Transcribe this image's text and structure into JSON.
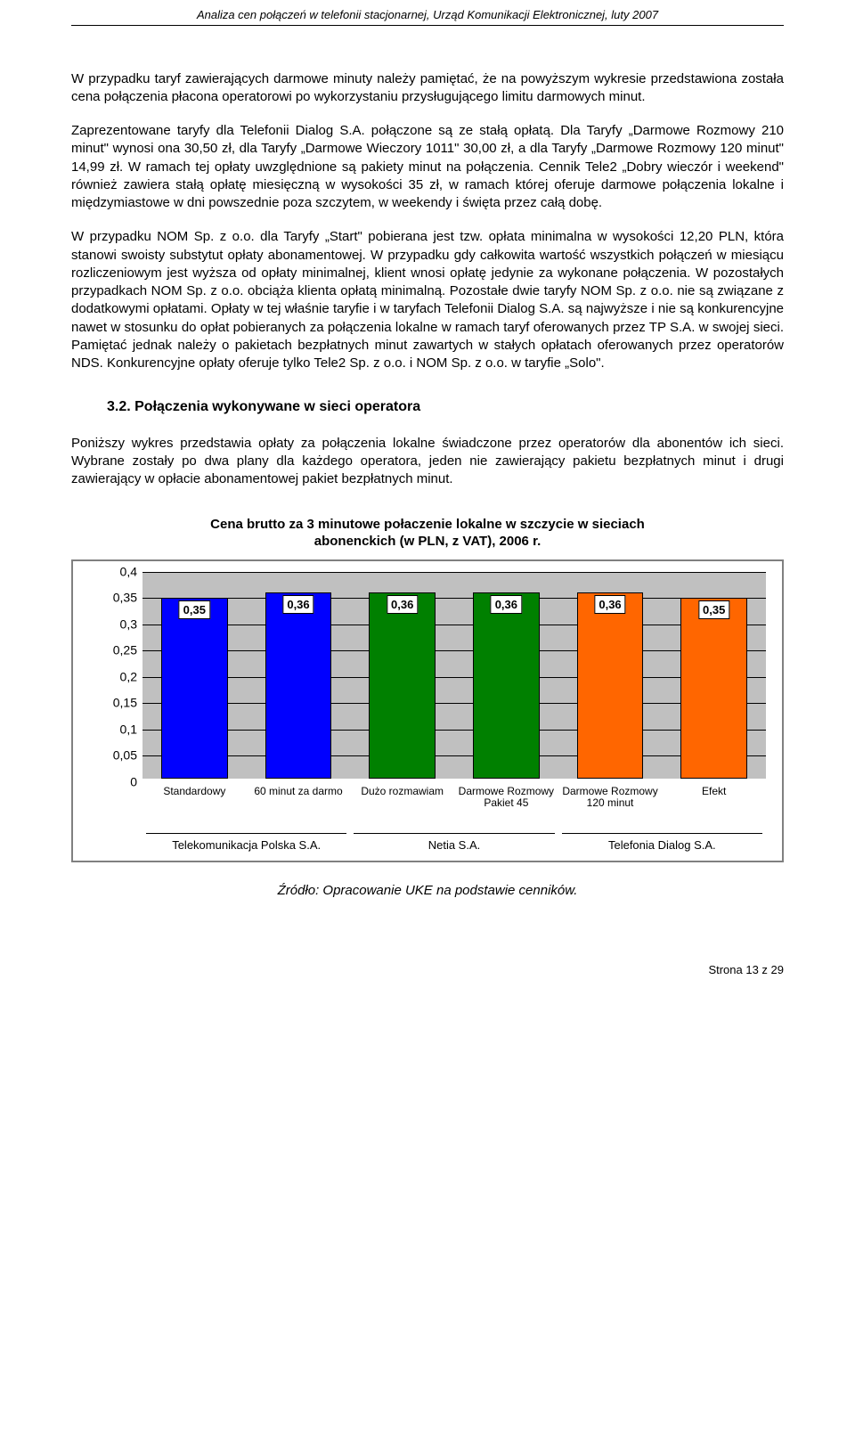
{
  "header": "Analiza cen połączeń w telefonii stacjonarnej, Urząd Komunikacji Elektronicznej, luty 2007",
  "para1": "W przypadku taryf zawierających darmowe minuty należy pamiętać, że na powyższym wykresie przedstawiona została cena połączenia płacona operatorowi po wykorzystaniu przysługującego limitu darmowych minut.",
  "para2": "Zaprezentowane taryfy dla Telefonii Dialog S.A. połączone są ze stałą opłatą. Dla Taryfy „Darmowe Rozmowy 210 minut\" wynosi ona 30,50 zł, dla Taryfy „Darmowe Wieczory 1011\" 30,00 zł, a dla Taryfy „Darmowe Rozmowy 120 minut\" 14,99 zł. W ramach tej opłaty uwzględnione są pakiety minut na połączenia. Cennik Tele2 „Dobry wieczór i weekend\" również zawiera stałą opłatę miesięczną w wysokości 35 zł, w ramach której oferuje darmowe połączenia lokalne i międzymiastowe w dni powszednie poza szczytem, w weekendy i święta przez całą dobę.",
  "para3": "W przypadku NOM Sp. z o.o. dla Taryfy „Start\" pobierana jest tzw. opłata minimalna w wysokości 12,20 PLN, która stanowi swoisty substytut opłaty abonamentowej. W przypadku gdy całkowita wartość wszystkich połączeń w miesiącu rozliczeniowym jest wyższa od opłaty minimalnej, klient wnosi opłatę jedynie za wykonane połączenia. W pozostałych przypadkach NOM Sp. z o.o. obciąża klienta opłatą minimalną. Pozostałe dwie taryfy NOM Sp. z o.o. nie są związane z dodatkowymi opłatami. Opłaty w tej właśnie taryfie i w taryfach Telefonii Dialog S.A. są najwyższe i nie są konkurencyjne nawet w stosunku do opłat pobieranych za połączenia lokalne w ramach taryf oferowanych przez TP S.A. w swojej sieci.  Pamiętać jednak należy o pakietach bezpłatnych minut zawartych w stałych opłatach oferowanych przez operatorów NDS. Konkurencyjne opłaty oferuje tylko Tele2 Sp. z o.o. i NOM Sp. z o.o. w taryfie „Solo\".",
  "section": "3.2. Połączenia wykonywane w sieci operatora",
  "para4": "Poniższy wykres przedstawia opłaty za połączenia lokalne świadczone przez operatorów dla abonentów ich sieci. Wybrane zostały po dwa plany dla każdego operatora, jeden nie zawierający pakietu bezpłatnych minut i drugi zawierający w opłacie abonamentowej pakiet bezpłatnych minut.",
  "chart": {
    "type": "bar",
    "title_line1": "Cena brutto za 3 minutowe połaczenie lokalne w szczycie w sieciach",
    "title_line2": "abonenckich (w PLN, z VAT), 2006 r.",
    "ylim": [
      0,
      0.4
    ],
    "yticks": [
      "0",
      "0,05",
      "0,1",
      "0,15",
      "0,2",
      "0,25",
      "0,3",
      "0,35",
      "0,4"
    ],
    "background_color": "#c0c0c0",
    "grid_color": "#000000",
    "border_color": "#808080",
    "categories": [
      {
        "label": "Standardowy",
        "value": 0.35,
        "value_label": "0,35",
        "color": "#0000ff"
      },
      {
        "label": "60 minut za darmo",
        "value": 0.36,
        "value_label": "0,36",
        "color": "#0000ff"
      },
      {
        "label": "Dużo rozmawiam",
        "value": 0.36,
        "value_label": "0,36",
        "color": "#008000"
      },
      {
        "label": "Darmowe Rozmowy Pakiet 45",
        "value": 0.36,
        "value_label": "0,36",
        "color": "#008000"
      },
      {
        "label": "Darmowe Rozmowy 120 minut",
        "value": 0.36,
        "value_label": "0,36",
        "color": "#ff6600"
      },
      {
        "label": "Efekt",
        "value": 0.35,
        "value_label": "0,35",
        "color": "#ff6600"
      }
    ],
    "groups": [
      {
        "label": "Telekomunikacja Polska S.A.",
        "span": 2
      },
      {
        "label": "Netia S.A.",
        "span": 2
      },
      {
        "label": "Telefonia Dialog S.A.",
        "span": 2
      }
    ]
  },
  "source": "Źródło: Opracowanie UKE na podstawie cenników.",
  "footer": "Strona 13 z 29"
}
